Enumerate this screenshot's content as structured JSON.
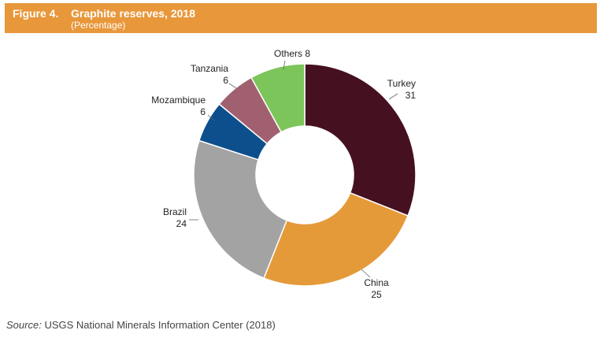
{
  "header": {
    "figure_number": "Figure 4.",
    "title": "Graphite reserves, 2018",
    "subtitle": "(Percentage)"
  },
  "source": {
    "prefix": "Source:",
    "text": "USGS National Minerals Information Center (2018)"
  },
  "colors": {
    "header_bg": "#e8973a",
    "Turkey": "#451020",
    "China": "#e59a3a",
    "Brazil": "#a3a3a3",
    "Mozambique": "#0d4f8c",
    "Tanzania": "#a06070",
    "Others": "#7cc55a"
  },
  "chart_data": {
    "type": "pie",
    "donut": true,
    "categories": [
      "Turkey",
      "China",
      "Brazil",
      "Mozambique",
      "Tanzania",
      "Others"
    ],
    "values": [
      31,
      25,
      24,
      6,
      6,
      8
    ],
    "unit": "%"
  }
}
